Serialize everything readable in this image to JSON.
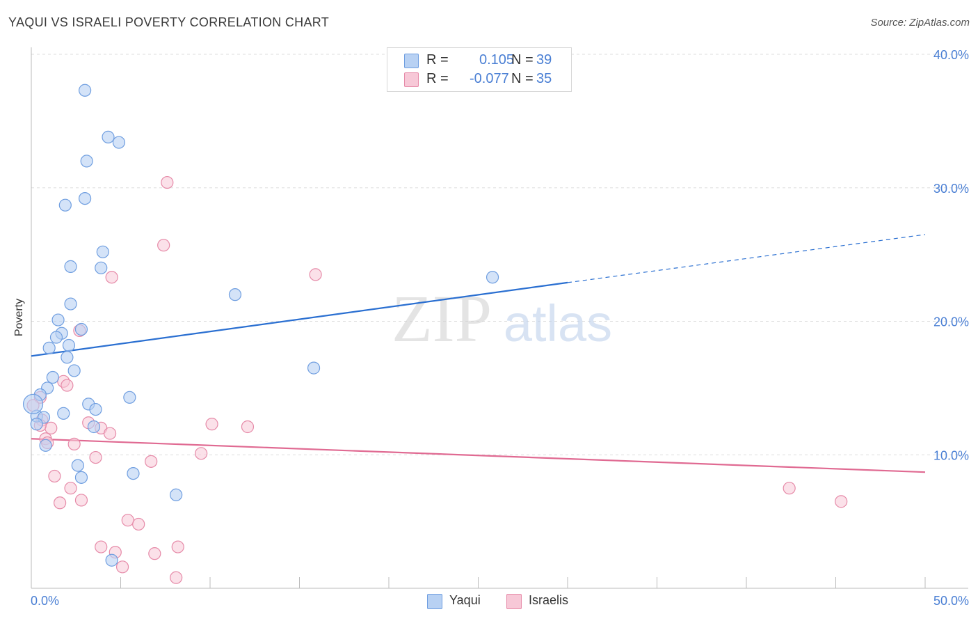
{
  "header": {
    "title": "YAQUI VS ISRAELI POVERTY CORRELATION CHART",
    "source": "Source: ZipAtlas.com"
  },
  "watermark": {
    "zip": "ZIP",
    "atlas": "atlas"
  },
  "legend": {
    "rows": [
      {
        "r_label": "R =",
        "r_value": "0.105",
        "n_label": "N =",
        "n_value": "39"
      },
      {
        "r_label": "R =",
        "r_value": "-0.077",
        "n_label": "N =",
        "n_value": "35"
      }
    ]
  },
  "colors": {
    "yaqui_fill": "#b8d1f3",
    "yaqui_stroke": "#6f9ee0",
    "yaqui_line": "#2a6fd1",
    "israelis_fill": "#f7c8d7",
    "israelis_stroke": "#e68aa8",
    "israelis_line": "#e06a92",
    "tick_text": "#4a7fd4",
    "grid": "#dddddd"
  },
  "chart_data": {
    "type": "scatter",
    "title": "YAQUI VS ISRAELI POVERTY CORRELATION CHART",
    "xlabel": "",
    "ylabel": "Poverty",
    "xlim": [
      0,
      50
    ],
    "ylim": [
      0,
      40
    ],
    "x_tick_labels": [
      "0.0%",
      "50.0%"
    ],
    "y_tick_labels": [
      "10.0%",
      "20.0%",
      "30.0%",
      "40.0%"
    ],
    "y_ticks": [
      10,
      20,
      30,
      40
    ],
    "legend_position": "top-center",
    "series": [
      {
        "name": "Yaqui",
        "r": 0.105,
        "n": 39,
        "trend": {
          "x_start": 0,
          "y_start": 17.4,
          "x_solid_end": 30,
          "y_solid_end": 22.9,
          "x_end": 50,
          "y_end": 26.5
        },
        "points": [
          [
            3.0,
            37.3
          ],
          [
            4.3,
            33.8
          ],
          [
            4.9,
            33.4
          ],
          [
            3.1,
            32.0
          ],
          [
            1.9,
            28.7
          ],
          [
            3.0,
            29.2
          ],
          [
            4.0,
            25.2
          ],
          [
            2.2,
            24.1
          ],
          [
            3.9,
            24.0
          ],
          [
            11.4,
            22.0
          ],
          [
            25.8,
            23.3
          ],
          [
            2.2,
            21.3
          ],
          [
            1.5,
            20.1
          ],
          [
            2.8,
            19.4
          ],
          [
            1.7,
            19.1
          ],
          [
            1.4,
            18.8
          ],
          [
            2.1,
            18.2
          ],
          [
            1.0,
            18.0
          ],
          [
            2.0,
            17.3
          ],
          [
            2.4,
            16.3
          ],
          [
            15.8,
            16.5
          ],
          [
            1.2,
            15.8
          ],
          [
            0.9,
            15.0
          ],
          [
            0.5,
            14.5
          ],
          [
            5.5,
            14.3
          ],
          [
            3.2,
            13.8
          ],
          [
            3.6,
            13.4
          ],
          [
            1.8,
            13.1
          ],
          [
            0.3,
            12.9
          ],
          [
            0.7,
            12.8
          ],
          [
            0.3,
            12.3
          ],
          [
            3.5,
            12.1
          ],
          [
            0.8,
            10.7
          ],
          [
            2.6,
            9.2
          ],
          [
            5.7,
            8.6
          ],
          [
            2.8,
            8.3
          ],
          [
            8.1,
            7.0
          ],
          [
            4.5,
            2.1
          ],
          [
            0.1,
            13.8
          ]
        ]
      },
      {
        "name": "Israelis",
        "r": -0.077,
        "n": 35,
        "trend": {
          "x_start": 0,
          "y_start": 11.2,
          "x_end": 50,
          "y_end": 8.7
        },
        "points": [
          [
            7.6,
            30.4
          ],
          [
            7.4,
            25.7
          ],
          [
            4.5,
            23.3
          ],
          [
            15.9,
            23.5
          ],
          [
            2.7,
            19.3
          ],
          [
            1.8,
            15.5
          ],
          [
            2.0,
            15.2
          ],
          [
            0.5,
            14.3
          ],
          [
            0.1,
            13.7
          ],
          [
            0.6,
            12.6
          ],
          [
            3.2,
            12.4
          ],
          [
            10.1,
            12.3
          ],
          [
            12.1,
            12.1
          ],
          [
            1.1,
            12.0
          ],
          [
            3.9,
            12.0
          ],
          [
            0.5,
            12.2
          ],
          [
            4.4,
            11.6
          ],
          [
            0.8,
            11.2
          ],
          [
            0.9,
            10.9
          ],
          [
            2.4,
            10.8
          ],
          [
            3.6,
            9.8
          ],
          [
            9.5,
            10.1
          ],
          [
            6.7,
            9.5
          ],
          [
            1.3,
            8.4
          ],
          [
            2.2,
            7.5
          ],
          [
            2.8,
            6.6
          ],
          [
            1.6,
            6.4
          ],
          [
            42.4,
            7.5
          ],
          [
            45.3,
            6.5
          ],
          [
            5.4,
            5.1
          ],
          [
            6.0,
            4.8
          ],
          [
            3.9,
            3.1
          ],
          [
            4.7,
            2.7
          ],
          [
            8.2,
            3.1
          ],
          [
            6.9,
            2.6
          ]
        ],
        "extra_points": [
          [
            5.1,
            1.6
          ],
          [
            8.1,
            0.8
          ]
        ]
      }
    ]
  },
  "bottom_legend": [
    {
      "label": "Yaqui"
    },
    {
      "label": "Israelis"
    }
  ]
}
